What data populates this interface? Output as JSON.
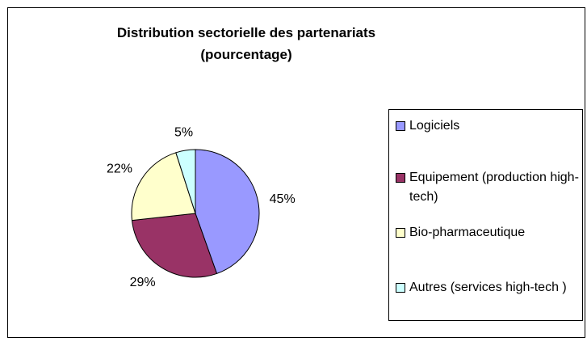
{
  "chart_data": {
    "type": "pie",
    "title": "Distribution sectorielle des partenariats (pourcentage)",
    "categories": [
      "Logiciels",
      "Equipement (production high-tech)",
      "Bio-pharmaceutique",
      "Autres (services high-tech )"
    ],
    "values": [
      45,
      29,
      22,
      5
    ],
    "value_labels": [
      "45%",
      "29%",
      "22%",
      "5%"
    ],
    "colors": [
      "#9999ff",
      "#993366",
      "#ffffcc",
      "#ccffff"
    ],
    "legend": "right"
  }
}
